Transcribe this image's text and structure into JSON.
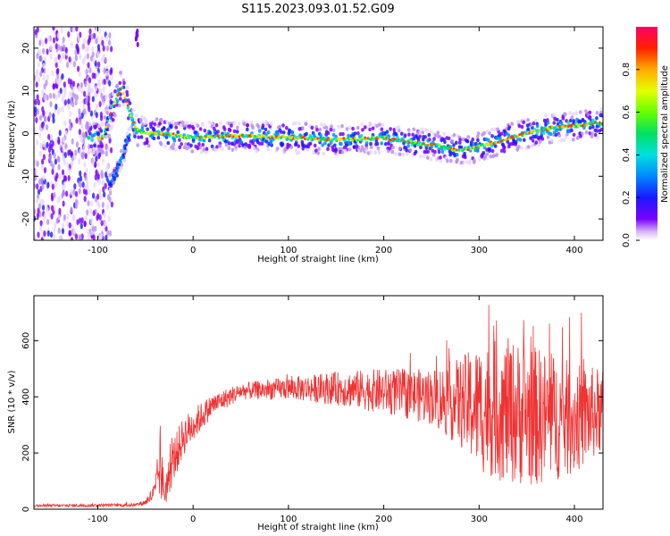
{
  "title": "S115.2023.093.01.52.G09",
  "colors": {
    "snr_line": "#f03232",
    "axis": "#000000"
  },
  "chart_data": [
    {
      "type": "heatmap",
      "xlabel": "Height of straight line (km)",
      "ylabel": "Frequency (Hz)",
      "xlim": [
        -167,
        430
      ],
      "ylim": [
        -25,
        25
      ],
      "x_ticks": [
        -100,
        0,
        100,
        200,
        300,
        400
      ],
      "y_ticks": [
        -20,
        -10,
        0,
        10,
        20
      ],
      "colormap": "rainbow (purple to red)",
      "colorbar": {
        "label": "Normalized spectral amplitude",
        "range": [
          0.0,
          1.0
        ],
        "ticks": [
          0.0,
          0.2,
          0.4,
          0.6,
          0.8
        ]
      },
      "ridge_x": [
        -110,
        -95,
        -85,
        -75,
        -68,
        -60,
        -50,
        -30,
        0,
        50,
        100,
        150,
        200,
        230,
        260,
        280,
        300,
        350,
        380,
        430
      ],
      "ridge_y": [
        -1,
        -1,
        6,
        11,
        6,
        1,
        0,
        0,
        -1,
        -0.5,
        -1,
        -1.5,
        -1,
        -2,
        -3,
        -4,
        -3,
        0,
        1.5,
        2.5
      ],
      "secondary_branch_x": [
        -88,
        -80,
        -72,
        -66
      ],
      "secondary_branch_y": [
        -12,
        -9,
        -4,
        0
      ]
    },
    {
      "type": "line",
      "xlabel": "Height of straight line (km)",
      "ylabel": "SNR (10 * v/v)",
      "xlim": [
        -167,
        430
      ],
      "ylim": [
        0,
        760
      ],
      "x_ticks": [
        -100,
        0,
        100,
        200,
        300,
        400
      ],
      "y_ticks": [
        0,
        200,
        400,
        600
      ],
      "envelope_x": [
        -167,
        -60,
        -50,
        -40,
        -35,
        -30,
        -20,
        -10,
        0,
        20,
        50,
        100,
        150,
        200,
        250,
        280,
        300,
        330,
        360,
        400,
        430
      ],
      "envelope_mean": [
        12,
        15,
        25,
        60,
        150,
        60,
        180,
        260,
        300,
        370,
        420,
        430,
        430,
        420,
        400,
        380,
        360,
        350,
        330,
        320,
        350
      ],
      "envelope_spread": [
        5,
        6,
        10,
        40,
        120,
        60,
        80,
        70,
        60,
        40,
        30,
        40,
        60,
        80,
        100,
        160,
        230,
        260,
        250,
        200,
        150
      ]
    }
  ]
}
